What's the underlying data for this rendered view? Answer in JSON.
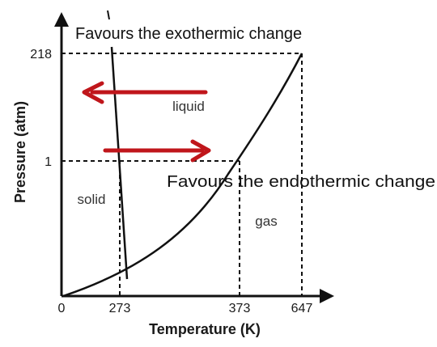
{
  "diagram": {
    "axes": {
      "x_label": "Temperature (K)",
      "y_label": "Pressure (atm)",
      "x_ticks": [
        "0",
        "273",
        "373",
        "647"
      ],
      "y_ticks": [
        "218",
        "1"
      ]
    },
    "regions": {
      "solid": "solid",
      "liquid": "liquid",
      "gas": "gas"
    },
    "annotations": {
      "exothermic": "Favours the exothermic change",
      "endothermic": "Favours the endothermic change"
    },
    "colors": {
      "arrow": "#c0161b",
      "line": "#111111"
    }
  }
}
